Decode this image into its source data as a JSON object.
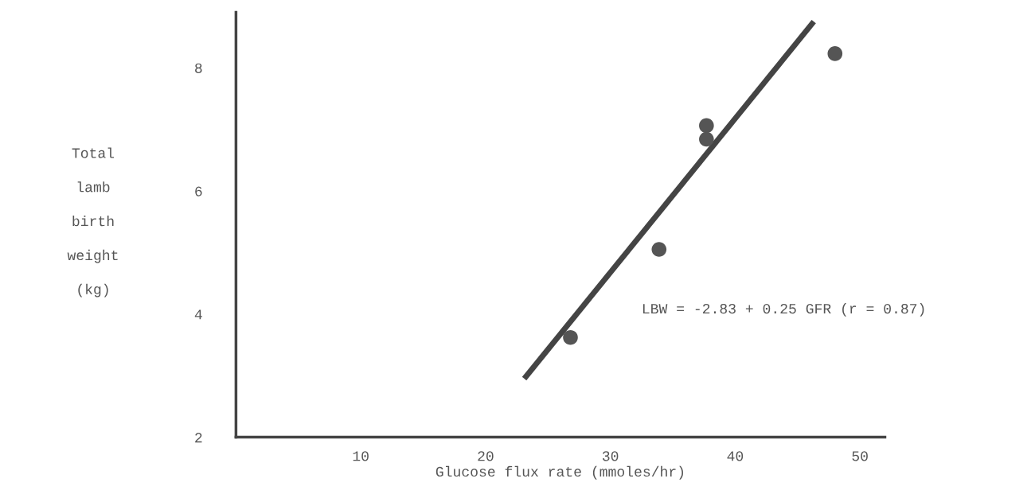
{
  "chart_data": {
    "type": "scatter",
    "xlabel": "Glucose flux rate (mmoles/hr)",
    "ylabel": "Total lamb birth weight (kg)",
    "series": [
      {
        "color": "#555555",
        "marker": "circle",
        "x": [
          26.8,
          33.9,
          37.7,
          37.7,
          48.0
        ],
        "values": [
          3.62,
          5.05,
          7.06,
          6.84,
          8.23
        ]
      },
      {
        "type": "line",
        "color": "#444444",
        "x": [
          23.1,
          46.3
        ],
        "values": [
          2.95,
          8.75
        ]
      }
    ],
    "annotations": [
      "LBW = -2.83 + 0.25 GFR (r = 0.87)"
    ],
    "xlim": [
      0,
      52
    ],
    "ylim": [
      2,
      8.9
    ],
    "xticks": [
      10,
      20,
      30,
      40,
      50
    ],
    "yticks": [
      2,
      4,
      6,
      8
    ],
    "grid": false
  }
}
